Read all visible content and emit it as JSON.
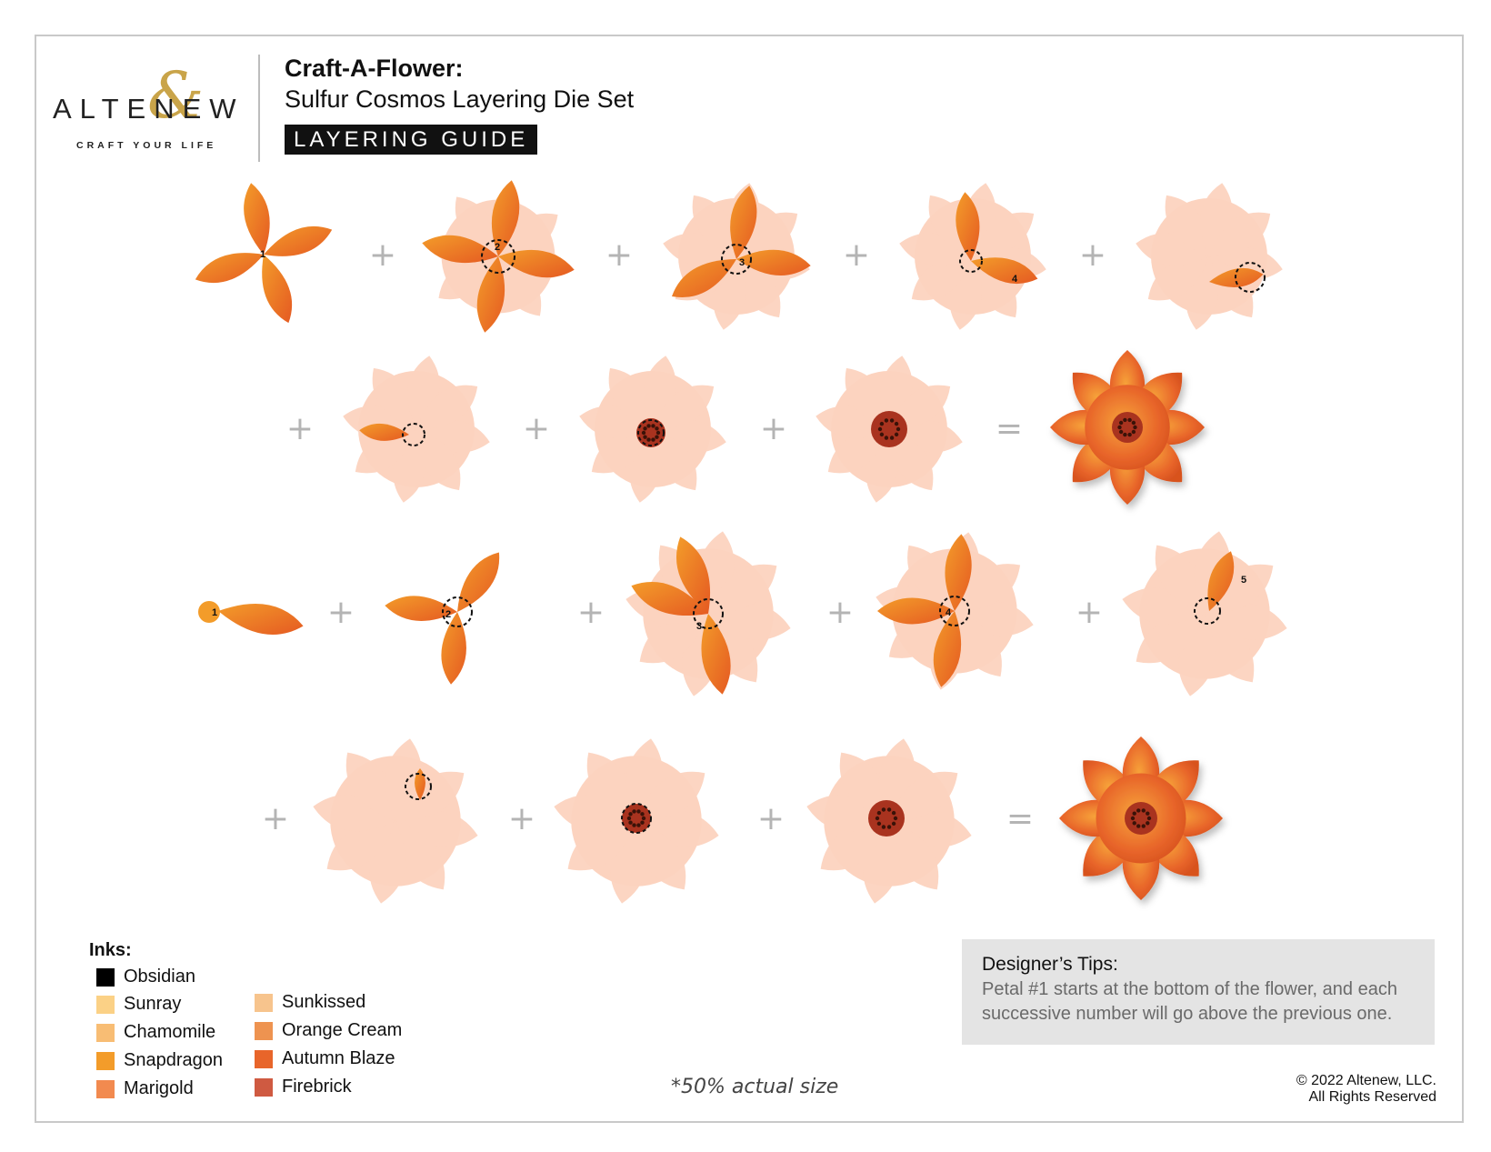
{
  "brand": {
    "name": "ALTENEW",
    "ampersand": "&",
    "tagline": "CRAFT YOUR LIFE"
  },
  "header": {
    "title": "Craft-A-Flower:",
    "subtitle": "Sulfur Cosmos Layering Die Set",
    "badge": "LAYERING GUIDE"
  },
  "operators": {
    "plus": "+",
    "equals": "="
  },
  "step_numbers": [
    "1",
    "2",
    "3",
    "4",
    "5"
  ],
  "inks": {
    "title": "Inks:",
    "items": [
      {
        "name": "Obsidian",
        "color": "#000000"
      },
      {
        "name": "Sunray",
        "color": "#fbd186"
      },
      {
        "name": "Chamomile",
        "color": "#f8bd74"
      },
      {
        "name": "Snapdragon",
        "color": "#f39c2a"
      },
      {
        "name": "Marigold",
        "color": "#f28a4f"
      },
      {
        "name": "Sunkissed",
        "color": "#f7c48d"
      },
      {
        "name": "Orange Cream",
        "color": "#ee9350"
      },
      {
        "name": "Autumn Blaze",
        "color": "#e8652a"
      },
      {
        "name": "Firebrick",
        "color": "#cf5a41"
      }
    ]
  },
  "tips": {
    "title": "Designer’s Tips:",
    "body": "Petal #1 starts at the bottom of the flower, and each successive number will go above the previous one."
  },
  "scale_note": "*50% actual size",
  "copyright": {
    "line1": "© 2022 Altenew, LLC.",
    "line2": "All Rights Reserved"
  },
  "colors": {
    "petal_light": "#fcd3bf",
    "petal_dark": "#e8652a",
    "petal_mid": "#f39c2a",
    "center": "#a9331f",
    "operator": "#b4b4b4"
  }
}
